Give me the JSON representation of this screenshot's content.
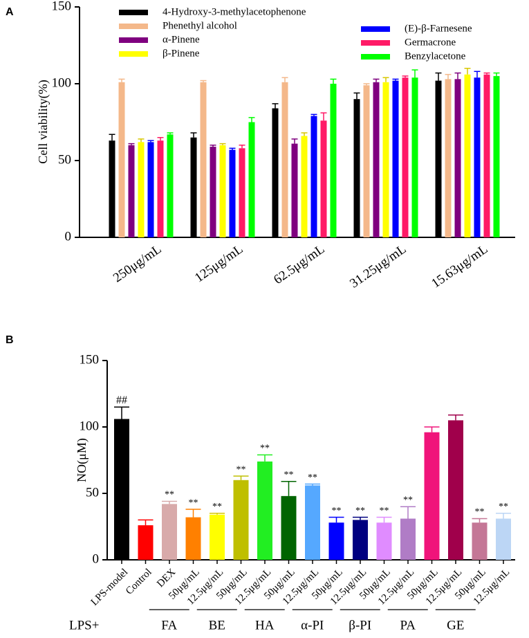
{
  "chart_data": [
    {
      "type": "bar",
      "panel_label": "A",
      "ylabel": "Cell viability(%)",
      "categories": [
        "250μg/mL",
        "125μg/mL",
        "62.5μg/mL",
        "31.25μg/mL",
        "15.63μg/mL"
      ],
      "series": [
        {
          "name": "4-Hydroxy-3-methylacetophenone",
          "color": "#000000",
          "values": [
            63,
            65,
            84,
            90,
            102
          ],
          "errors": [
            4,
            3,
            3,
            4,
            5
          ]
        },
        {
          "name": "Phenethyl alcohol",
          "color": "#f4b88a",
          "values": [
            101,
            101,
            101,
            99,
            103
          ],
          "errors": [
            2,
            1,
            3,
            1,
            3
          ]
        },
        {
          "name": "α-Pinene",
          "color": "#7f007f",
          "values": [
            60,
            59,
            61,
            101,
            103
          ],
          "errors": [
            1,
            1,
            3,
            2,
            4
          ]
        },
        {
          "name": "β-Pinene",
          "color": "#ffff00",
          "values": [
            62,
            60,
            66,
            101,
            106
          ],
          "errors": [
            2,
            1,
            2,
            3,
            4
          ]
        },
        {
          "name": "(E)-β-Farnesene",
          "color": "#0000ff",
          "values": [
            62,
            57,
            79,
            102,
            104
          ],
          "errors": [
            1,
            1,
            1,
            1,
            4
          ]
        },
        {
          "name": "Germacrone",
          "color": "#ff1a66",
          "values": [
            63,
            58,
            76,
            104,
            106
          ],
          "errors": [
            2,
            2,
            5,
            1,
            1
          ]
        },
        {
          "name": "Benzylacetone",
          "color": "#00ff00",
          "values": [
            67,
            75,
            100,
            104,
            105
          ],
          "errors": [
            1,
            3,
            3,
            5,
            2
          ]
        }
      ],
      "ylim": [
        0,
        150
      ],
      "yticks": [
        0,
        50,
        100,
        150
      ]
    },
    {
      "type": "bar",
      "panel_label": "B",
      "ylabel": "NO(μM)",
      "categories": [
        "LPS-model",
        "Control",
        "DEX",
        "50μg/mL",
        "12.5μg/mL",
        "50μg/mL",
        "12.5μg/mL",
        "50μg/mL",
        "12.5μg/mL",
        "50μg/mL",
        "12.5μg/mL",
        "50μg/mL",
        "12.5μg/mL",
        "50μg/mL",
        "12.5μg/mL",
        "50μg/mL",
        "12.5μg/mL"
      ],
      "values": [
        106,
        26,
        42,
        32,
        34,
        60,
        74,
        48,
        56,
        28,
        30,
        28,
        31,
        96,
        105,
        28,
        31
      ],
      "errors": [
        9,
        4,
        2,
        6,
        1,
        3,
        5,
        11,
        1,
        4,
        2,
        4,
        9,
        4,
        4,
        3,
        4
      ],
      "colors": [
        "#000000",
        "#ff0000",
        "#d8aaaa",
        "#ff8000",
        "#ffff00",
        "#bfbf00",
        "#22ee22",
        "#006400",
        "#55a8ff",
        "#0000ff",
        "#000080",
        "#e08cff",
        "#b07cc6",
        "#f0147a",
        "#a0004b",
        "#c47796",
        "#bcd6f5"
      ],
      "annotations": [
        "##",
        null,
        "**",
        "**",
        "**",
        "**",
        "**",
        "**",
        "**",
        "**",
        "**",
        "**",
        "**",
        null,
        null,
        "**",
        "**"
      ],
      "group_prefix": "LPS+",
      "group_labels": [
        "FA",
        "BE",
        "HA",
        "α-PI",
        "β-PI",
        "PA",
        "GE"
      ],
      "ylim": [
        0,
        150
      ],
      "yticks": [
        0,
        50,
        100,
        150
      ]
    }
  ]
}
